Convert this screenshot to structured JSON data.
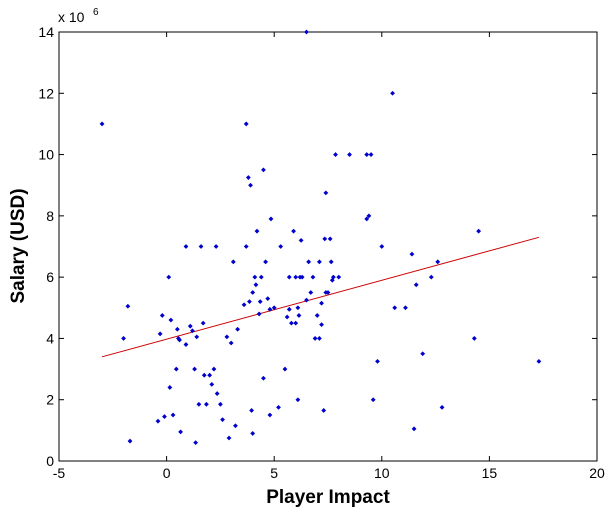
{
  "chart_data": {
    "type": "scatter",
    "title": "",
    "xlabel": "Player Impact",
    "ylabel": "Salary (USD)",
    "exponent_label": {
      "base": "x 10",
      "power": "6"
    },
    "xlim": [
      -5,
      20
    ],
    "ylim": [
      0,
      14
    ],
    "xticks": [
      -5,
      0,
      5,
      10,
      15,
      20
    ],
    "yticks": [
      0,
      2,
      4,
      6,
      8,
      10,
      12,
      14
    ],
    "grid": false,
    "colors": {
      "points": "#0000cc",
      "fit_line": "#cc0000",
      "axes": "#000000"
    },
    "series": [
      {
        "type": "scatter",
        "points": [
          [
            -3.0,
            11.0
          ],
          [
            -2.0,
            4.0
          ],
          [
            -1.8,
            5.05
          ],
          [
            -1.7,
            0.65
          ],
          [
            -0.4,
            1.3
          ],
          [
            -0.3,
            4.15
          ],
          [
            -0.2,
            4.75
          ],
          [
            -0.1,
            1.45
          ],
          [
            0.1,
            6.0
          ],
          [
            0.15,
            2.4
          ],
          [
            0.2,
            4.6
          ],
          [
            0.3,
            1.5
          ],
          [
            0.45,
            3.0
          ],
          [
            0.5,
            4.3
          ],
          [
            0.55,
            4.0
          ],
          [
            0.6,
            3.95
          ],
          [
            0.65,
            0.95
          ],
          [
            0.9,
            7.0
          ],
          [
            0.9,
            3.8
          ],
          [
            1.1,
            4.4
          ],
          [
            1.2,
            4.25
          ],
          [
            1.3,
            3.0
          ],
          [
            1.35,
            0.6
          ],
          [
            1.4,
            4.05
          ],
          [
            1.5,
            1.85
          ],
          [
            1.6,
            7.0
          ],
          [
            1.7,
            4.5
          ],
          [
            1.75,
            2.8
          ],
          [
            1.85,
            1.85
          ],
          [
            2.0,
            2.8
          ],
          [
            2.1,
            2.5
          ],
          [
            2.2,
            3.0
          ],
          [
            2.3,
            7.0
          ],
          [
            2.35,
            2.2
          ],
          [
            2.5,
            1.85
          ],
          [
            2.6,
            1.35
          ],
          [
            2.8,
            4.05
          ],
          [
            2.9,
            0.75
          ],
          [
            3.0,
            3.85
          ],
          [
            3.1,
            6.5
          ],
          [
            3.2,
            1.15
          ],
          [
            3.3,
            4.3
          ],
          [
            3.6,
            5.1
          ],
          [
            3.7,
            11.0
          ],
          [
            3.7,
            7.0
          ],
          [
            3.8,
            9.25
          ],
          [
            3.85,
            5.2
          ],
          [
            3.9,
            9.0
          ],
          [
            3.95,
            1.65
          ],
          [
            4.0,
            0.9
          ],
          [
            4.0,
            5.5
          ],
          [
            4.1,
            6.0
          ],
          [
            4.15,
            5.75
          ],
          [
            4.2,
            7.5
          ],
          [
            4.3,
            4.8
          ],
          [
            4.35,
            5.2
          ],
          [
            4.4,
            6.0
          ],
          [
            4.5,
            9.5
          ],
          [
            4.5,
            2.7
          ],
          [
            4.6,
            6.5
          ],
          [
            4.7,
            5.3
          ],
          [
            4.8,
            4.95
          ],
          [
            4.8,
            1.5
          ],
          [
            4.85,
            7.9
          ],
          [
            5.0,
            5.0
          ],
          [
            5.2,
            1.75
          ],
          [
            5.3,
            7.0
          ],
          [
            5.5,
            3.0
          ],
          [
            5.6,
            4.7
          ],
          [
            5.7,
            4.95
          ],
          [
            5.7,
            6.0
          ],
          [
            5.8,
            4.5
          ],
          [
            5.9,
            7.5
          ],
          [
            6.0,
            4.5
          ],
          [
            6.0,
            6.0
          ],
          [
            6.1,
            2.0
          ],
          [
            6.1,
            5.0
          ],
          [
            6.15,
            4.75
          ],
          [
            6.2,
            6.0
          ],
          [
            6.25,
            7.2
          ],
          [
            6.3,
            6.0
          ],
          [
            6.5,
            14.0
          ],
          [
            6.5,
            5.25
          ],
          [
            6.6,
            6.5
          ],
          [
            6.7,
            5.5
          ],
          [
            6.8,
            6.0
          ],
          [
            6.9,
            4.0
          ],
          [
            7.0,
            4.75
          ],
          [
            7.1,
            4.0
          ],
          [
            7.1,
            6.5
          ],
          [
            7.2,
            5.15
          ],
          [
            7.2,
            4.45
          ],
          [
            7.3,
            1.65
          ],
          [
            7.35,
            7.25
          ],
          [
            7.4,
            8.75
          ],
          [
            7.4,
            5.5
          ],
          [
            7.5,
            5.5
          ],
          [
            7.6,
            7.25
          ],
          [
            7.65,
            6.5
          ],
          [
            7.7,
            5.9
          ],
          [
            7.75,
            6.0
          ],
          [
            7.85,
            10.0
          ],
          [
            8.0,
            6.0
          ],
          [
            8.5,
            10.0
          ],
          [
            9.3,
            10.0
          ],
          [
            9.3,
            7.9
          ],
          [
            9.4,
            8.0
          ],
          [
            9.5,
            10.0
          ],
          [
            9.6,
            2.0
          ],
          [
            9.8,
            3.25
          ],
          [
            10.0,
            7.0
          ],
          [
            10.5,
            12.0
          ],
          [
            10.6,
            5.0
          ],
          [
            11.1,
            5.0
          ],
          [
            11.4,
            6.75
          ],
          [
            11.5,
            1.05
          ],
          [
            11.6,
            5.75
          ],
          [
            11.9,
            3.5
          ],
          [
            12.3,
            6.0
          ],
          [
            12.6,
            6.5
          ],
          [
            12.8,
            1.75
          ],
          [
            14.3,
            4.0
          ],
          [
            14.5,
            7.5
          ],
          [
            17.3,
            3.25
          ]
        ]
      },
      {
        "type": "line",
        "points": [
          [
            -3.0,
            3.4
          ],
          [
            17.3,
            7.3
          ]
        ]
      }
    ]
  }
}
